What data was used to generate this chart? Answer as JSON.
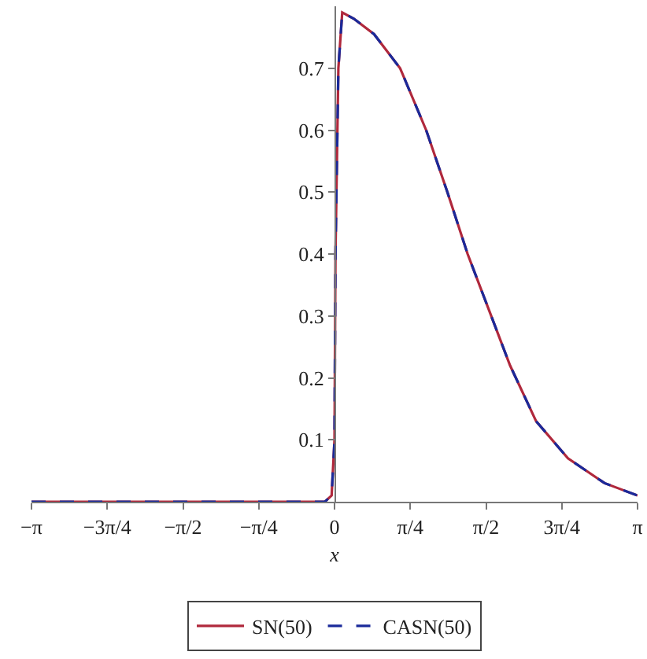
{
  "chart_data": {
    "type": "line",
    "xlabel": "x",
    "x": [
      -3.1416,
      -1.5,
      -0.1,
      -0.03,
      0,
      0.01,
      0.04,
      0.08,
      0.2,
      0.41,
      0.68,
      0.95,
      1.17,
      1.38,
      1.6,
      1.82,
      2.09,
      2.42,
      2.8,
      3.1416
    ],
    "series": [
      {
        "name": "SN(50)",
        "color": "#b0283c",
        "line_style": "solid",
        "values": [
          0,
          0,
          0,
          0.01,
          0.1,
          0.4,
          0.7,
          0.79,
          0.78,
          0.755,
          0.7,
          0.6,
          0.5,
          0.4,
          0.31,
          0.22,
          0.13,
          0.07,
          0.03,
          0.01
        ]
      },
      {
        "name": "CASN(50)",
        "color": "#1a2a9a",
        "line_style": "dashed",
        "values": [
          0,
          0,
          0,
          0.01,
          0.1,
          0.4,
          0.7,
          0.79,
          0.78,
          0.755,
          0.7,
          0.6,
          0.5,
          0.4,
          0.31,
          0.22,
          0.13,
          0.07,
          0.03,
          0.01
        ]
      }
    ],
    "xlim": [
      -3.1416,
      3.1416
    ],
    "ylim": [
      0,
      0.8
    ],
    "xticks": [
      {
        "value": -3.1416,
        "label": "−π"
      },
      {
        "value": -2.3562,
        "label": "−3π/4"
      },
      {
        "value": -1.5708,
        "label": "−π/2"
      },
      {
        "value": -0.7854,
        "label": "−π/4"
      },
      0,
      {
        "value": 0.7854,
        "label": "π/4"
      },
      {
        "value": 1.5708,
        "label": "π/2"
      },
      {
        "value": 2.3562,
        "label": "3π/4"
      },
      {
        "value": 3.1416,
        "label": "π"
      }
    ],
    "yticks": [
      0.1,
      0.2,
      0.3,
      0.4,
      0.5,
      0.6,
      0.7
    ],
    "grid": false,
    "legend": "bottom",
    "marker": "none"
  }
}
